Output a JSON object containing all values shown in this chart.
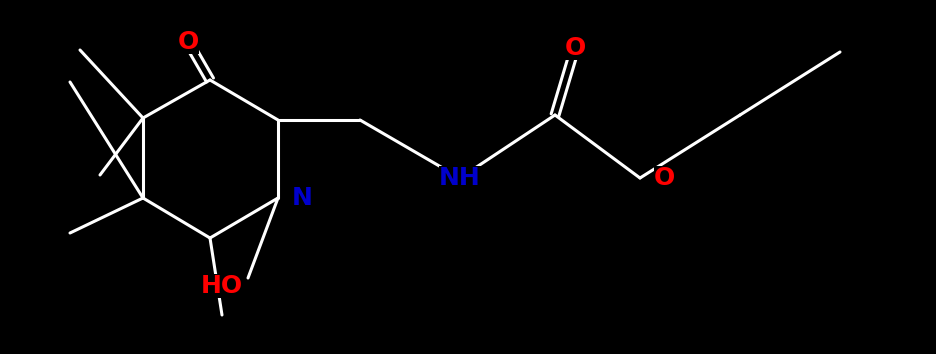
{
  "background_color": "#000000",
  "bond_color": "#ffffff",
  "atom_colors": {
    "O": "#ff0000",
    "N": "#0000cc",
    "C": "#ffffff"
  },
  "figsize": [
    9.37,
    3.54
  ],
  "dpi": 100,
  "bond_lw": 2.2,
  "font_size": 17
}
